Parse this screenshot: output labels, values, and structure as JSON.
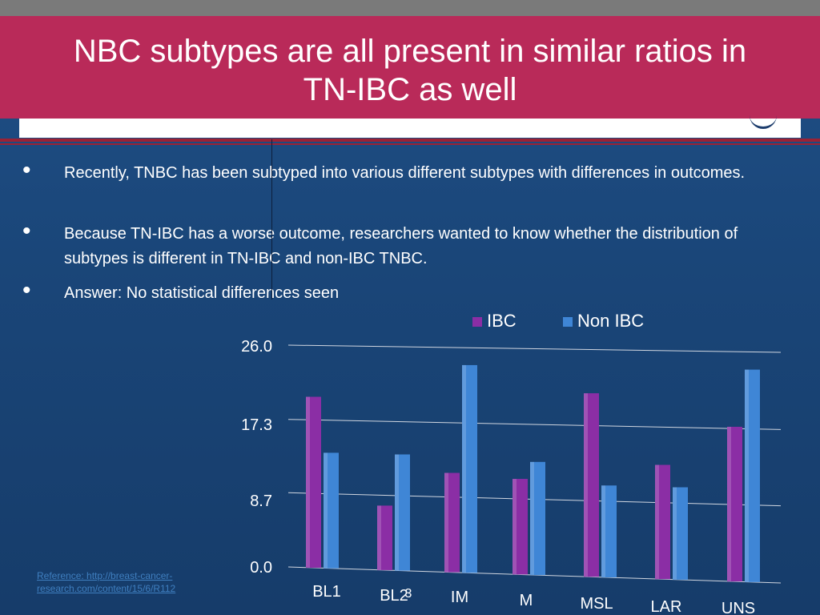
{
  "slide": {
    "title_line1": "NBC subtypes are all present in similar ratios in",
    "title_line2": "TN-IBC as well",
    "bullets": [
      "Recently, TNBC has been subtyped into various different subtypes with differences in outcomes.",
      "Because TN-IBC has a worse outcome, researchers wanted to know whether the distribution of subtypes is different in TN-IBC and non-IBC TNBC.",
      "Answer: No statistical differences seen"
    ],
    "reference": "Reference: http://breast-cancer-research.com/content/15/6/R112"
  },
  "chart_data": {
    "type": "bar",
    "categories": [
      "BL1",
      "BL2",
      "IM",
      "M",
      "MSL",
      "LAR",
      "UNS"
    ],
    "category_overlay": "3",
    "series": [
      {
        "name": "IBC",
        "values": [
          20.0,
          7.5,
          11.5,
          11.0,
          21.0,
          13.0,
          17.5
        ],
        "color": "#8b2ea5"
      },
      {
        "name": "Non IBC",
        "values": [
          13.5,
          13.5,
          24.0,
          13.0,
          10.5,
          10.5,
          24.0
        ],
        "color": "#3f86d6"
      }
    ],
    "yticks": [
      "0.0",
      "8.7",
      "17.3",
      "26.0"
    ],
    "ylim": [
      0,
      26
    ],
    "grid": true,
    "legend": "top-right"
  }
}
